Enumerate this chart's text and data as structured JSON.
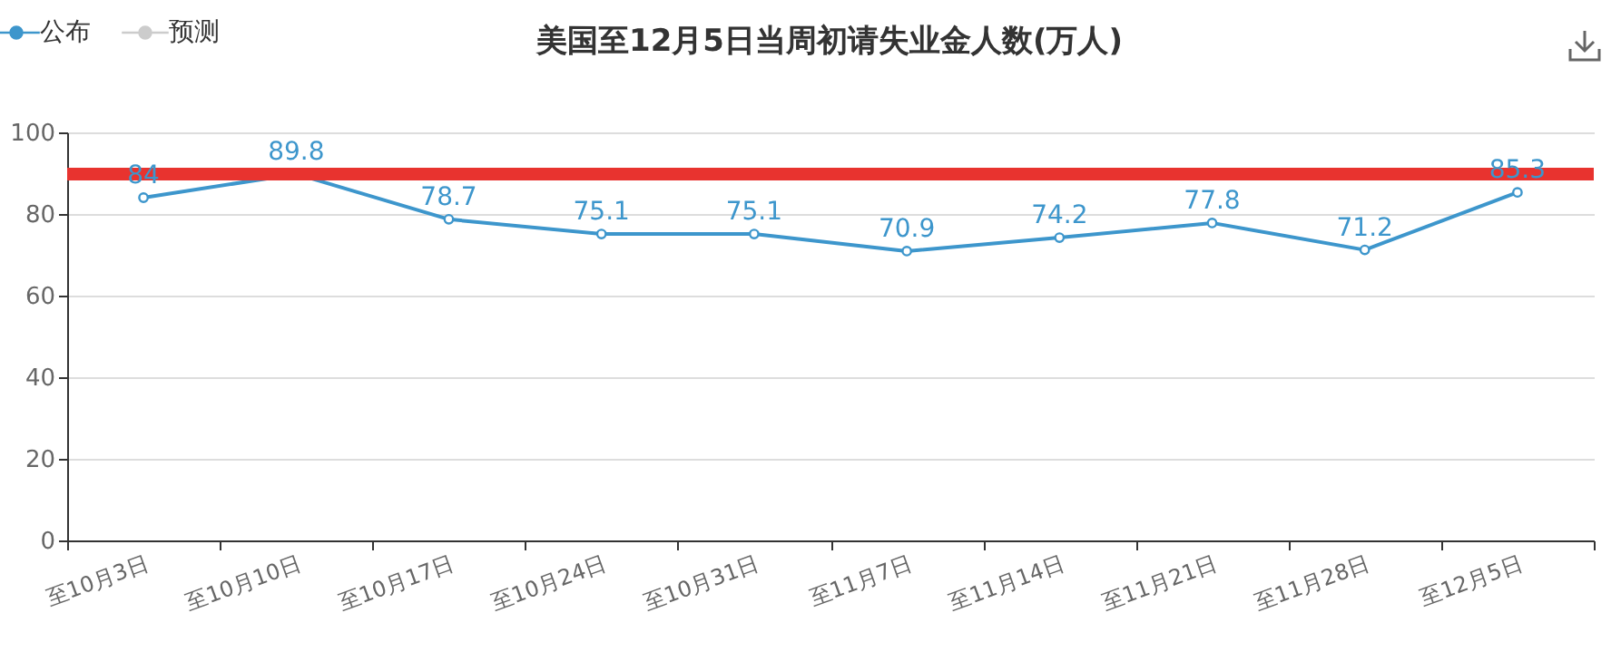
{
  "chart_data": {
    "type": "line",
    "title": "美国至12月5日当周初请失业金人数(万人)",
    "categories": [
      "至10月3日",
      "至10月10日",
      "至10月17日",
      "至10月24日",
      "至10月31日",
      "至11月7日",
      "至11月14日",
      "至11月21日",
      "至11月28日",
      "至12月5日"
    ],
    "series": [
      {
        "name": "公布",
        "color": "#3d96cc",
        "values": [
          84,
          89.8,
          78.7,
          75.1,
          75.1,
          70.9,
          74.2,
          77.8,
          71.2,
          85.3
        ]
      },
      {
        "name": "预测",
        "color": "#cccccc",
        "values": [
          null,
          null,
          null,
          null,
          null,
          null,
          null,
          null,
          null,
          null
        ]
      }
    ],
    "ylim": [
      0,
      100
    ],
    "yticks": [
      0,
      20,
      40,
      60,
      80,
      100
    ],
    "grid": "y",
    "legend": "top left",
    "marker": "circle",
    "line_style": "solid",
    "data_labels": true,
    "ref_lines": [
      {
        "axis": "y",
        "value": 89.8,
        "color": "#e8332f"
      }
    ]
  }
}
